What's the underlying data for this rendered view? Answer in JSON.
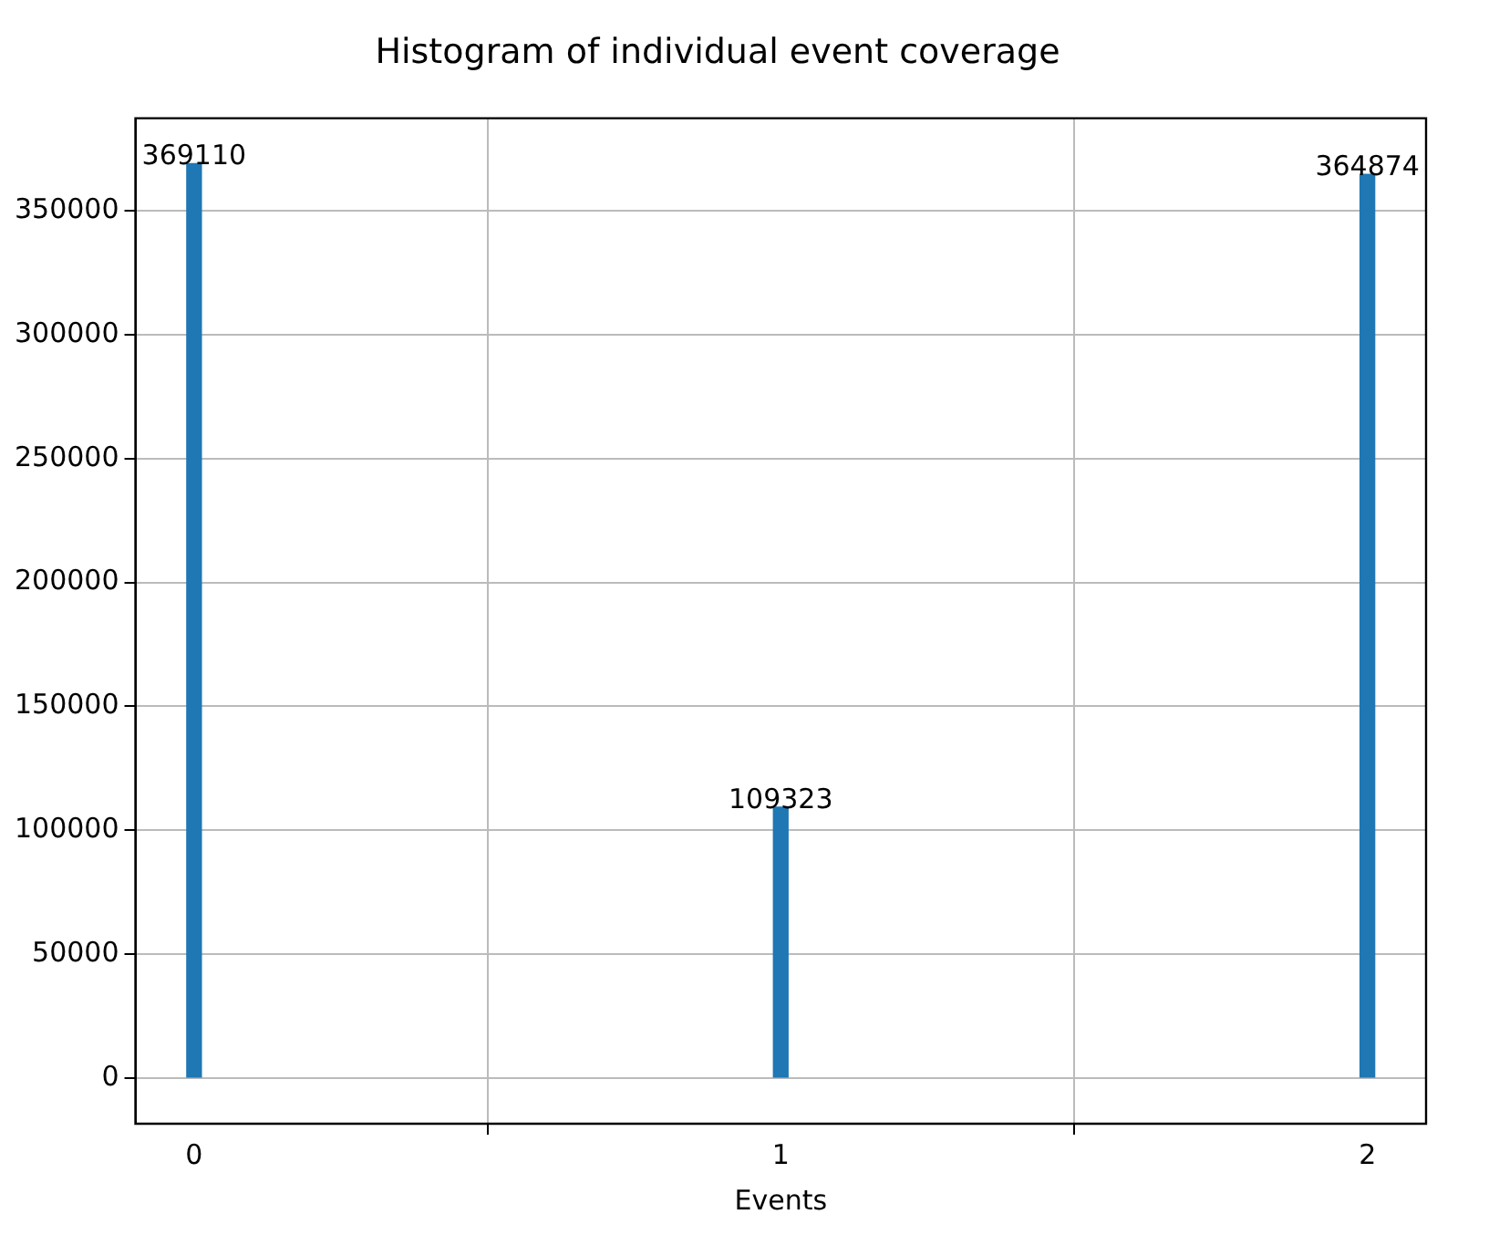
{
  "chart_data": {
    "type": "bar",
    "title": "Histogram of individual event coverage",
    "xlabel": "Events",
    "x": [
      0,
      1,
      2
    ],
    "values": [
      369110,
      109323,
      364874
    ],
    "color": "#1f77b4",
    "xlim": [
      -0.1,
      2.1
    ],
    "xticks": [
      0,
      1,
      2
    ],
    "ylim": [
      -18500,
      387500
    ],
    "yticks": [
      0,
      50000,
      100000,
      150000,
      200000,
      250000,
      300000,
      350000
    ],
    "grid": true,
    "data_labels": true
  }
}
